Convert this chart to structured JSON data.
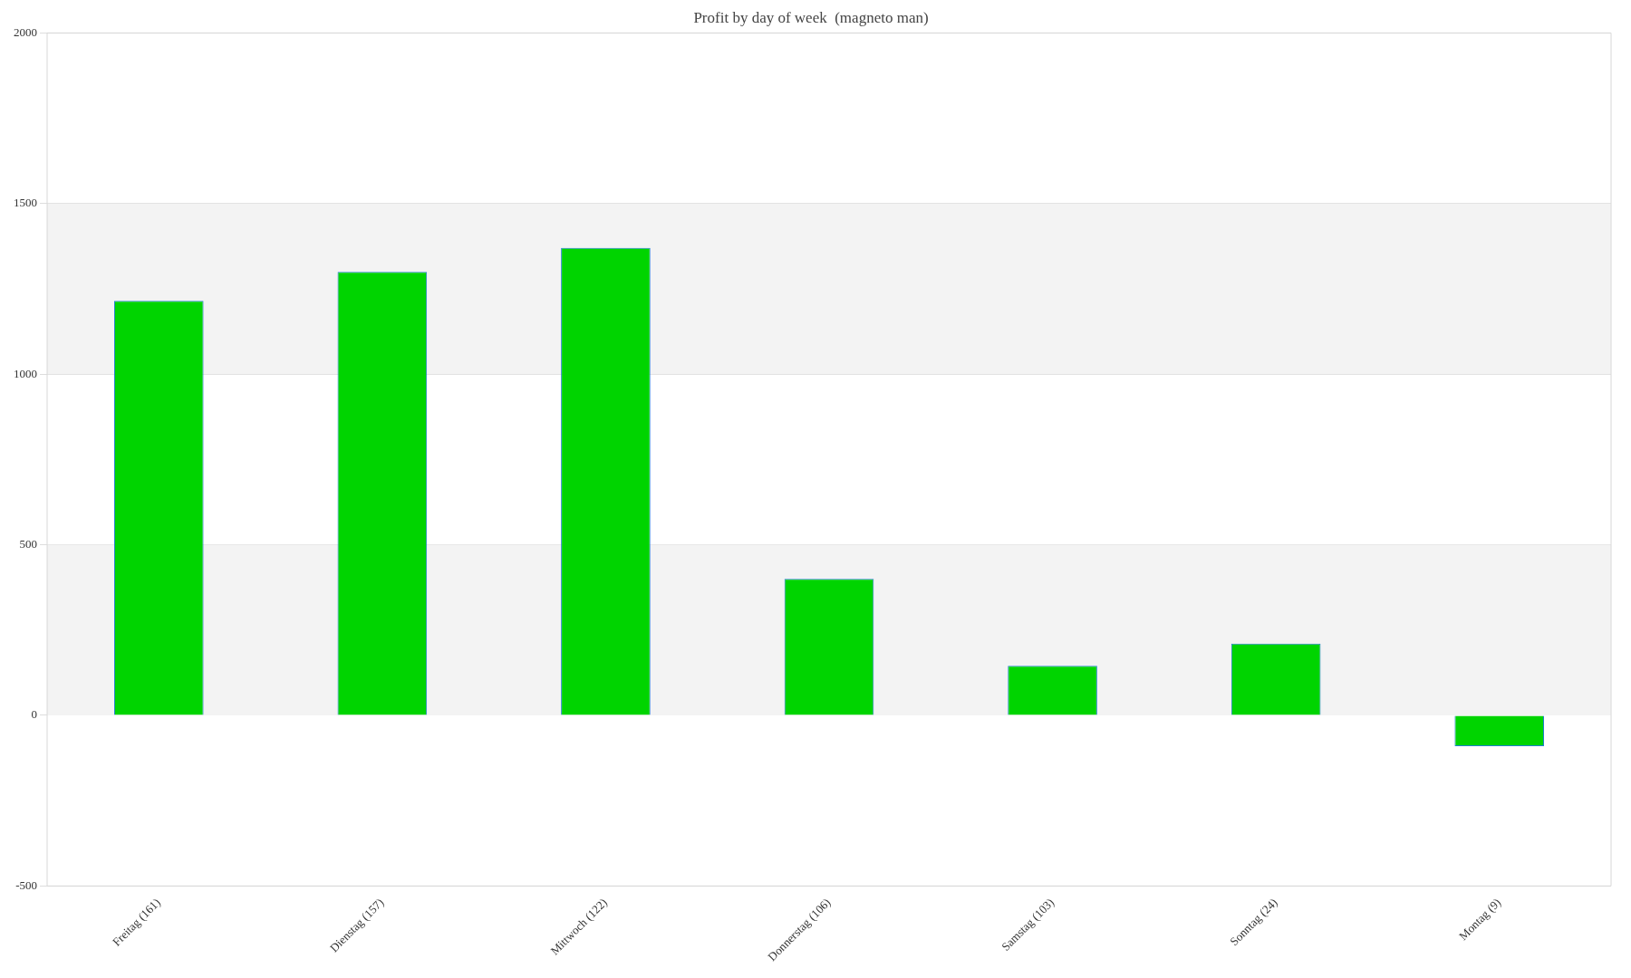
{
  "chart_data": {
    "type": "bar",
    "title": "Profit by day of week  (magneto man)",
    "categories": [
      "Freitag (161)",
      "Dienstag (157)",
      "Mittwoch (122)",
      "Donnerstag (106)",
      "Samstag (103)",
      "Sonntag (24)",
      "Montag (9)"
    ],
    "values": [
      1215,
      1300,
      1370,
      400,
      145,
      210,
      -90
    ],
    "color": "#00d400",
    "ylim": [
      -500,
      2000
    ],
    "yticks": [
      -500,
      0,
      500,
      1000,
      1500,
      2000
    ],
    "grid": "y",
    "bands": [
      {
        "axis": "y",
        "from": 0,
        "to": 500,
        "color": "#f3f3f3"
      },
      {
        "axis": "y",
        "from": 1000,
        "to": 1500,
        "color": "#f3f3f3"
      }
    ],
    "legend": false
  }
}
